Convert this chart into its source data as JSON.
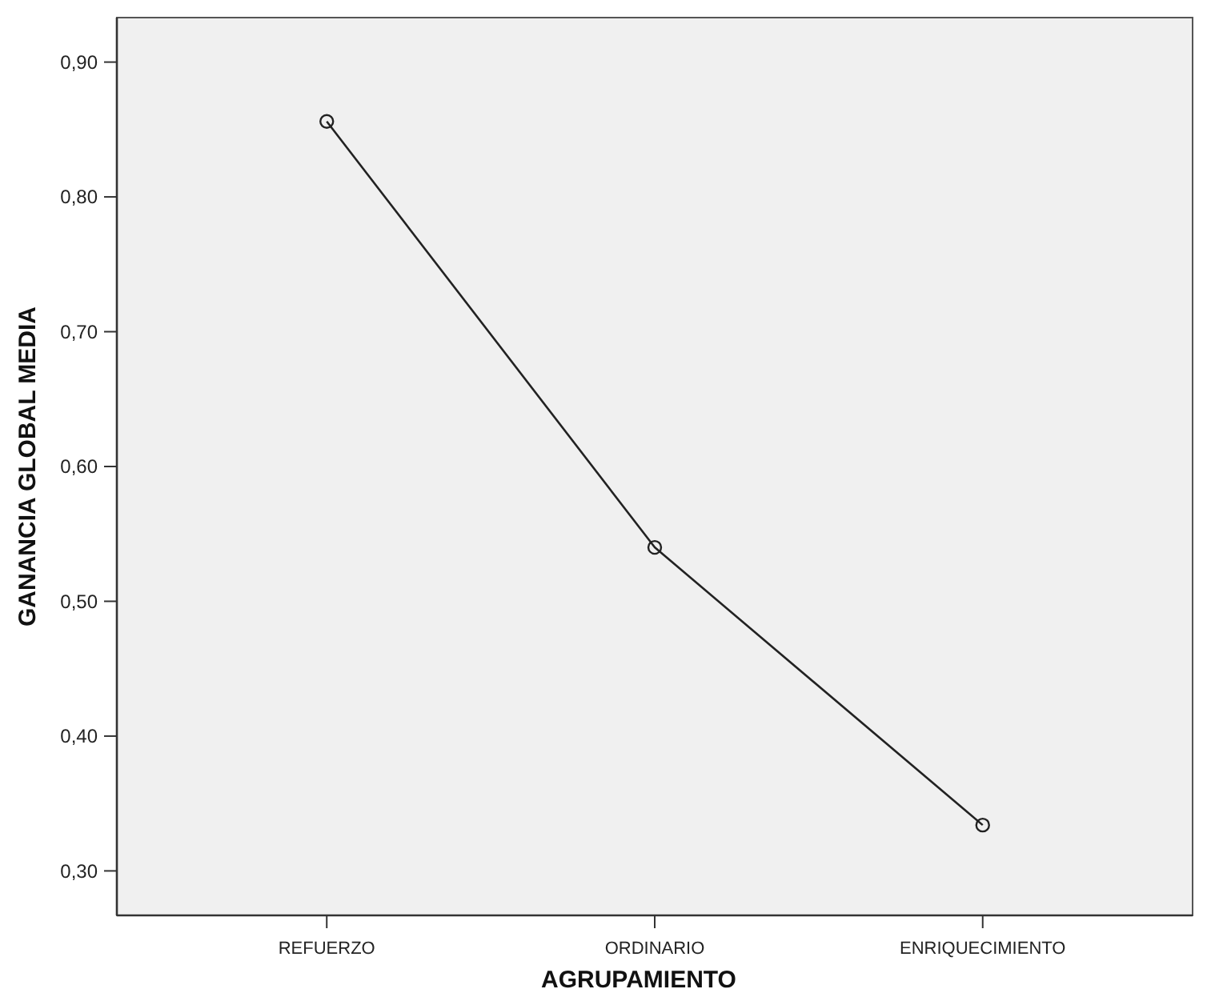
{
  "chart_data": {
    "type": "line",
    "xlabel": "AGRUPAMIENTO",
    "ylabel": "GANANCIA GLOBAL MEDIA",
    "categories": [
      "REFUERZO",
      "ORDINARIO",
      "ENRIQUECIMIENTO"
    ],
    "series": [
      {
        "color": "#222222",
        "values": [
          0.856,
          0.54,
          0.334
        ]
      }
    ],
    "ylim": [
      0.267,
      0.933
    ],
    "yticks": [
      {
        "value": 0.3,
        "label": "0,30"
      },
      {
        "value": 0.4,
        "label": "0,40"
      },
      {
        "value": 0.5,
        "label": "0,50"
      },
      {
        "value": 0.6,
        "label": "0,60"
      },
      {
        "value": 0.7,
        "label": "0,70"
      },
      {
        "value": 0.8,
        "label": "0,80"
      },
      {
        "value": 0.9,
        "label": "0,90"
      }
    ],
    "marker": "circle",
    "line_style": "solid"
  }
}
